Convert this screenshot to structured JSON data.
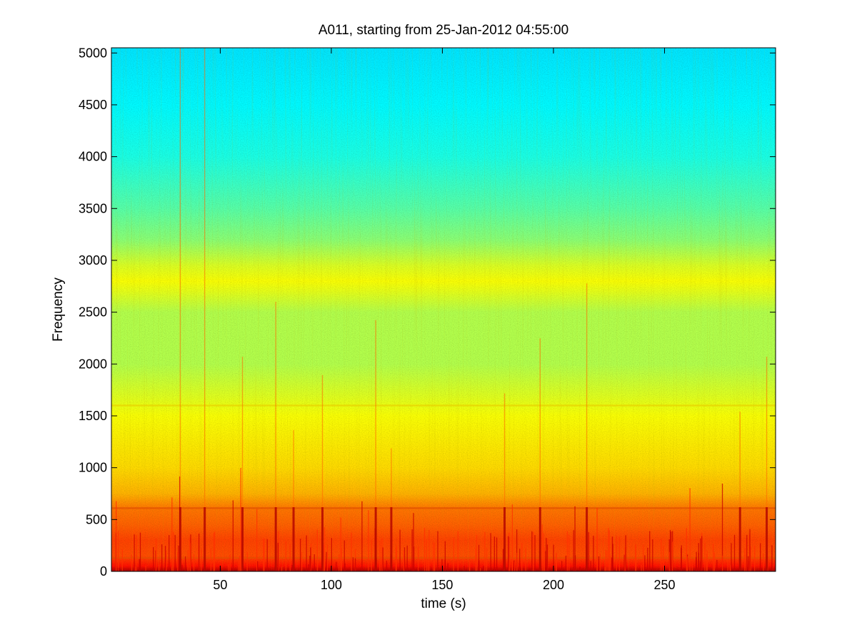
{
  "chart_data": {
    "type": "heatmap",
    "title": "A011, starting from 25-Jan-2012 04:55:00",
    "xlabel": "time (s)",
    "ylabel": "Frequency",
    "xlim": [
      1,
      300
    ],
    "ylim": [
      0,
      5050
    ],
    "xticks": [
      50,
      100,
      150,
      200,
      250
    ],
    "yticks": [
      0,
      500,
      1000,
      1500,
      2000,
      2500,
      3000,
      3500,
      4000,
      4500,
      5000
    ],
    "colormap": "jet",
    "grid": false,
    "intensity_profile": {
      "frequency": [
        0,
        50,
        150,
        300,
        450,
        600,
        750,
        1000,
        1500,
        2000,
        2500,
        2700,
        2800,
        2950,
        3200,
        3500,
        4000,
        4500,
        5050
      ],
      "level": [
        0.96,
        0.86,
        0.8,
        0.81,
        0.78,
        0.76,
        0.7,
        0.66,
        0.62,
        0.55,
        0.55,
        0.6,
        0.62,
        0.59,
        0.51,
        0.46,
        0.4,
        0.37,
        0.35
      ]
    },
    "horizontal_lines_hz": [
      130,
      610,
      1600
    ],
    "vertical_events_s": [
      32,
      43,
      60,
      75,
      83,
      96,
      120,
      127,
      178,
      194,
      215,
      284,
      296
    ]
  }
}
